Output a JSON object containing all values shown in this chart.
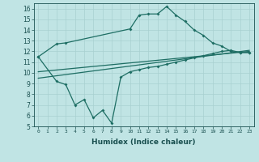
{
  "xlabel": "Humidex (Indice chaleur)",
  "bg_color": "#c0e4e4",
  "grid_color": "#a8d0d0",
  "line_color": "#1e6e64",
  "xlim": [
    -0.5,
    23.5
  ],
  "ylim": [
    5,
    16.5
  ],
  "ytick_min": 5,
  "ytick_max": 16,
  "xticks": [
    0,
    1,
    2,
    3,
    4,
    5,
    6,
    7,
    8,
    9,
    10,
    11,
    12,
    13,
    14,
    15,
    16,
    17,
    18,
    19,
    20,
    21,
    22,
    23
  ],
  "yticks": [
    5,
    6,
    7,
    8,
    9,
    10,
    11,
    12,
    13,
    14,
    15,
    16
  ],
  "upper_curve_x": [
    0,
    2,
    3,
    10,
    11,
    12,
    13,
    14,
    15,
    16,
    17,
    18,
    19,
    20,
    21,
    22,
    23
  ],
  "upper_curve_y": [
    11.5,
    12.7,
    12.8,
    14.1,
    15.4,
    15.5,
    15.5,
    16.2,
    15.4,
    14.8,
    14.0,
    13.5,
    12.8,
    12.5,
    12.0,
    11.9,
    11.9
  ],
  "lower_curve_x": [
    0,
    2,
    3,
    4,
    5,
    6,
    7,
    8,
    9,
    10,
    11,
    12,
    13,
    14,
    15,
    16,
    17,
    18,
    19,
    20,
    21,
    22,
    23
  ],
  "lower_curve_y": [
    11.5,
    9.2,
    8.9,
    7.0,
    7.5,
    5.8,
    6.5,
    5.3,
    9.6,
    10.1,
    10.3,
    10.5,
    10.6,
    10.8,
    11.0,
    11.2,
    11.4,
    11.6,
    11.8,
    12.0,
    12.1,
    11.9,
    11.9
  ],
  "reg_line1_x": [
    0,
    23
  ],
  "reg_line1_y": [
    9.5,
    12.1
  ],
  "reg_line2_x": [
    0,
    23
  ],
  "reg_line2_y": [
    10.1,
    12.0
  ]
}
